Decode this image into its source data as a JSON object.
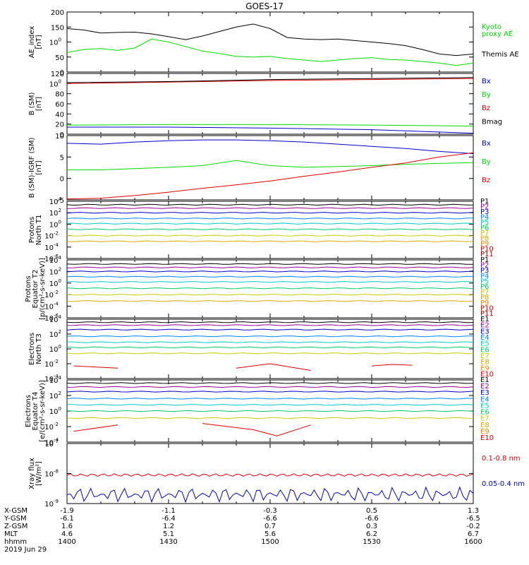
{
  "title": "GOES-17",
  "date": "2019 Jun 29",
  "colors": {
    "black": "#000000",
    "green": "#00dd00",
    "blue": "#0000cc",
    "red": "#dd0000"
  },
  "panels": [
    {
      "id": "ae",
      "ylabel": [
        "AE_index",
        "[nT]"
      ],
      "ticks": [
        "0",
        "50",
        "100",
        "150",
        "200"
      ],
      "legend": [
        {
          "text": "Kyoto",
          "color": "#00dd00"
        },
        {
          "text": "proxy AE",
          "color": "#00dd00"
        },
        {
          "text": "Themis AE",
          "color": "#000000"
        }
      ]
    },
    {
      "id": "bsm",
      "ylabel": [
        "B (SM)",
        "[nT]"
      ],
      "ticks": [
        "0",
        "20",
        "40",
        "60",
        "80",
        "100",
        "120"
      ],
      "legend": [
        {
          "text": "Bx",
          "color": "#0000cc"
        },
        {
          "text": "By",
          "color": "#00dd00"
        },
        {
          "text": "Bz",
          "color": "#dd0000"
        },
        {
          "text": "Bmag",
          "color": "#000000"
        }
      ]
    },
    {
      "id": "bigrf",
      "ylabel": [
        "B (SM)-IGRF (SM)",
        "[nT]"
      ],
      "ticks": [
        "-5",
        "0",
        "5",
        "10"
      ],
      "legend": [
        {
          "text": "Bx",
          "color": "#0000cc"
        },
        {
          "text": "By",
          "color": "#00dd00"
        },
        {
          "text": "Bz",
          "color": "#dd0000"
        }
      ]
    },
    {
      "id": "pn",
      "ylabel": [
        "Protons",
        "North T1"
      ],
      "ticks": [
        "10-6",
        "10-4",
        "10-2",
        "100",
        "102",
        "104"
      ],
      "legend_labels": [
        "P1",
        "P2",
        "P3",
        "P4",
        "P5",
        "P6",
        "P7",
        "P8",
        "P9",
        "P10",
        "P11"
      ]
    },
    {
      "id": "pe",
      "ylabel": [
        "Protons",
        "Equator T2",
        "[p/(cm²-s-sr-keV)]"
      ],
      "ticks": [
        "10-6",
        "10-4",
        "10-2",
        "100",
        "102",
        "104"
      ],
      "legend_labels": [
        "P1",
        "P2",
        "P3",
        "P4",
        "P5",
        "P6",
        "P7",
        "P8",
        "P9",
        "P10",
        "P11"
      ]
    },
    {
      "id": "en",
      "ylabel": [
        "Electrons",
        "North T3"
      ],
      "ticks": [
        "10-4",
        "10-2",
        "100",
        "102",
        "104"
      ],
      "legend_labels": [
        "E1",
        "E2",
        "E3",
        "E4",
        "E5",
        "E6",
        "E7",
        "E8",
        "E9",
        "E10"
      ]
    },
    {
      "id": "ee",
      "ylabel": [
        "Electrons",
        "Equator T4",
        "[e/(cm²-s-sr-keV)]"
      ],
      "ticks": [
        "10-4",
        "10-2",
        "100",
        "102",
        "104"
      ],
      "legend_labels": [
        "E1",
        "E2",
        "E3",
        "E4",
        "E5",
        "E6",
        "E7",
        "E8",
        "E9",
        "E10"
      ]
    },
    {
      "id": "xray",
      "ylabel": [
        "Xray flux",
        "[W/m²]"
      ],
      "ticks": [
        "10-9",
        "10-8",
        "10-7"
      ],
      "legend": [
        {
          "text": "0.1-0.8 nm",
          "color": "#dd0000"
        },
        {
          "text": "0.05-0.4 nm",
          "color": "#0000cc"
        }
      ]
    }
  ],
  "x_axis": {
    "row_labels": [
      "X-GSM",
      "Y-GSM",
      "Z-GSM",
      "MLT",
      "hhmm"
    ],
    "columns": [
      [
        "-1.9",
        "-6.1",
        "1.6",
        "4.6",
        "1400"
      ],
      [
        "-1.1",
        "-6.4",
        "1.2",
        "5.1",
        "1430"
      ],
      [
        "-0.3",
        "-6.6",
        "0.7",
        "5.6",
        "1500"
      ],
      [
        "0.5",
        "-6.6",
        "0.3",
        "6.2",
        "1530"
      ],
      [
        "1.3",
        "-6.5",
        "-0.2",
        "6.7",
        "1600"
      ]
    ]
  },
  "chart_data": {
    "type": "line",
    "title": "GOES-17",
    "x_label": "hhmm",
    "x_range": [
      "1400",
      "1600"
    ],
    "panels": [
      {
        "name": "AE_index",
        "ylim": [
          0,
          200
        ],
        "series": [
          {
            "name": "Themis AE",
            "color": "#000000",
            "x": [
              0,
              5,
              10,
              15,
              20,
              25,
              30,
              35,
              40,
              45,
              50,
              55,
              60,
              65,
              70,
              75,
              80,
              85,
              90,
              95,
              100,
              105,
              110,
              115,
              120
            ],
            "y": [
              145,
              140,
              130,
              132,
              133,
              127,
              118,
              108,
              120,
              135,
              150,
              160,
              145,
              115,
              110,
              108,
              110,
              105,
              100,
              95,
              88,
              75,
              60,
              55,
              60
            ]
          },
          {
            "name": "Kyoto proxy AE",
            "color": "#00dd00",
            "x": [
              0,
              5,
              10,
              15,
              20,
              25,
              30,
              35,
              40,
              45,
              50,
              55,
              60,
              65,
              70,
              75,
              80,
              85,
              90,
              95,
              100,
              105,
              110,
              115,
              120
            ],
            "y": [
              65,
              75,
              78,
              72,
              80,
              110,
              100,
              85,
              70,
              62,
              52,
              50,
              52,
              45,
              40,
              35,
              40,
              45,
              48,
              42,
              40,
              35,
              30,
              22,
              30
            ]
          }
        ]
      },
      {
        "name": "B (SM)",
        "ylim": [
          0,
          120
        ],
        "series": [
          {
            "name": "Bx",
            "color": "#0000cc",
            "x": [
              0,
              30,
              60,
              90,
              120
            ],
            "y": [
              14,
              14,
              12,
              9,
              2
            ]
          },
          {
            "name": "By",
            "color": "#00dd00",
            "x": [
              0,
              30,
              60,
              90,
              120
            ],
            "y": [
              18,
              19,
              19,
              18,
              16
            ]
          },
          {
            "name": "Bz",
            "color": "#dd0000",
            "x": [
              0,
              30,
              60,
              90,
              120
            ],
            "y": [
              100,
              103,
              106,
              108,
              110
            ]
          },
          {
            "name": "Bmag",
            "color": "#000000",
            "x": [
              0,
              30,
              60,
              90,
              120
            ],
            "y": [
              102,
              104,
              108,
              110,
              112
            ]
          }
        ]
      },
      {
        "name": "B (SM)-IGRF (SM)",
        "ylim": [
          -5,
          10
        ],
        "series": [
          {
            "name": "Bx",
            "color": "#0000cc",
            "x": [
              0,
              10,
              20,
              30,
              40,
              50,
              60,
              70,
              80,
              90,
              100,
              110,
              120
            ],
            "y": [
              8.2,
              8.0,
              8.5,
              8.8,
              9.0,
              9.0,
              8.8,
              8.5,
              8.0,
              7.5,
              7.0,
              6.3,
              5.8
            ]
          },
          {
            "name": "By",
            "color": "#00dd00",
            "x": [
              0,
              10,
              20,
              30,
              40,
              50,
              60,
              70,
              80,
              90,
              100,
              110,
              120
            ],
            "y": [
              2.0,
              2.0,
              2.3,
              2.6,
              3.0,
              4.2,
              3.0,
              2.6,
              2.8,
              3.0,
              3.3,
              3.5,
              3.7
            ]
          },
          {
            "name": "Bz",
            "color": "#dd0000",
            "x": [
              0,
              10,
              20,
              30,
              40,
              50,
              60,
              70,
              80,
              90,
              100,
              110,
              120
            ],
            "y": [
              -4.8,
              -4.6,
              -4.0,
              -3.2,
              -2.3,
              -1.5,
              -0.6,
              0.5,
              1.5,
              2.6,
              3.6,
              5.0,
              6.0
            ]
          }
        ]
      },
      {
        "name": "Protons North T1",
        "ylim_log10": [
          -6,
          4
        ]
      },
      {
        "name": "Protons Equator T2",
        "ylim_log10": [
          -6,
          4
        ]
      },
      {
        "name": "Electrons North T3",
        "ylim_log10": [
          -4,
          4
        ]
      },
      {
        "name": "Electrons Equator T4",
        "ylim_log10": [
          -4,
          4
        ]
      },
      {
        "name": "Xray flux",
        "ylim_log10": [
          -9,
          -7
        ],
        "series": [
          {
            "name": "0.1-0.8 nm",
            "color": "#dd0000",
            "level_log10": -8.05
          },
          {
            "name": "0.05-0.4 nm",
            "color": "#0000cc",
            "level_log10": -8.7
          }
        ]
      }
    ]
  }
}
